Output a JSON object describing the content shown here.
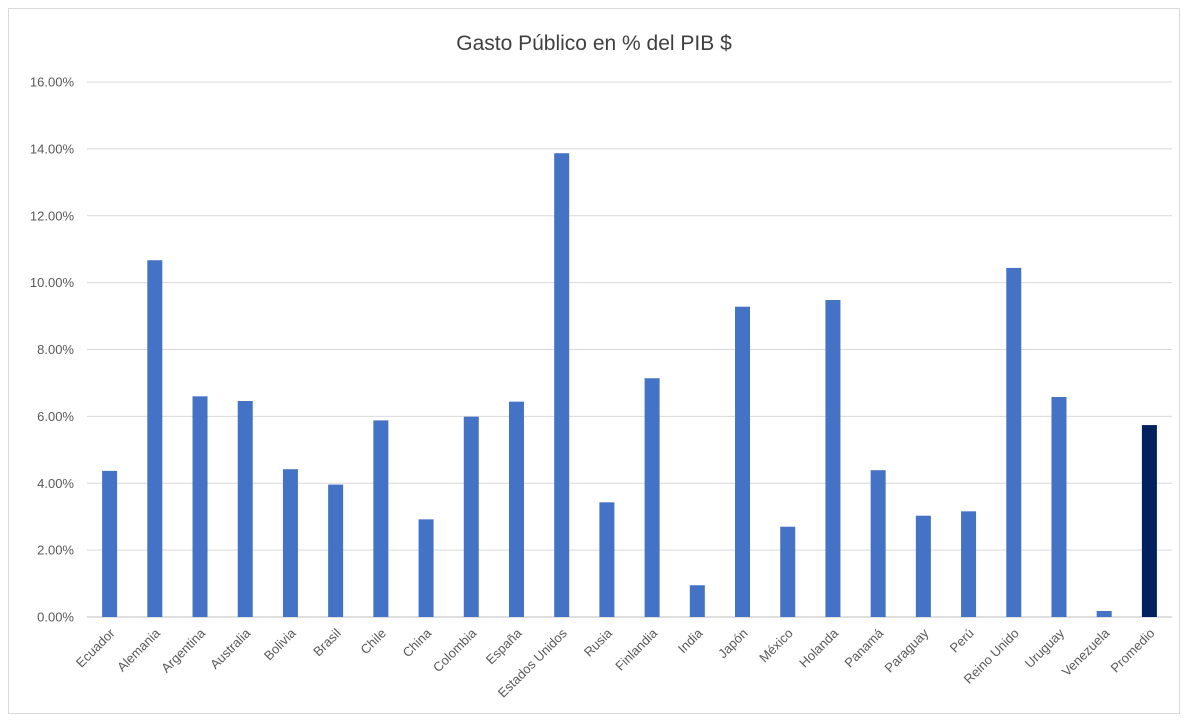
{
  "chart_data": {
    "type": "bar",
    "title": "Gasto Público en % del PIB $",
    "xlabel": "",
    "ylabel": "",
    "ylim": [
      0,
      16
    ],
    "yticks": [
      "0.00%",
      "2.00%",
      "4.00%",
      "6.00%",
      "8.00%",
      "10.00%",
      "12.00%",
      "14.00%",
      "16.00%"
    ],
    "grid": true,
    "categories": [
      "Ecuador",
      "Alemania",
      "Argentina",
      "Australia",
      "Bolivia",
      "Brasil",
      "Chile",
      "China",
      "Colombia",
      "España",
      "Estados Unidos",
      "Rusia",
      "Finlandia",
      "India",
      "Japón",
      "México",
      "Holanda",
      "Panamá",
      "Paraguay",
      "Perú",
      "Reino Unido",
      "Uruguay",
      "Venezuela",
      "Promedio"
    ],
    "values": [
      4.37,
      10.67,
      6.6,
      6.46,
      4.42,
      3.96,
      5.88,
      2.92,
      5.99,
      6.44,
      13.87,
      3.43,
      7.14,
      0.95,
      9.28,
      2.7,
      9.48,
      4.39,
      3.03,
      3.16,
      10.44,
      6.58,
      0.18,
      5.74
    ],
    "colors": {
      "bar": "#4472C4",
      "highlight": "#002060",
      "highlight_category": "Promedio",
      "grid": "#d9d9d9",
      "axis": "#bfbfbf"
    }
  }
}
